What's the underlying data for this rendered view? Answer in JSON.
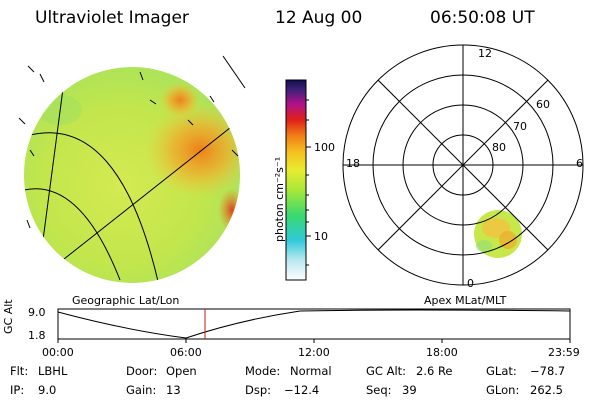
{
  "header": {
    "title": "Ultraviolet Imager",
    "date": "12 Aug 00",
    "time": "06:50:08 UT"
  },
  "colorbar": {
    "unit_label": "photon cm⁻²s⁻¹",
    "tick_100": "100",
    "tick_10": "10"
  },
  "polar_plot": {
    "mlt_labels": [
      "12",
      "18",
      "6",
      "0"
    ],
    "lat_labels": [
      "60",
      "70",
      "80"
    ]
  },
  "panel_captions": {
    "left": "Geographic Lat/Lon",
    "right": "Apex MLat/MLT"
  },
  "altitude_plot": {
    "axis_label": "GC Alt",
    "y_ticks": [
      "9.0",
      "1.8"
    ],
    "x_ticks": [
      "00:00",
      "06:00",
      "12:00",
      "18:00",
      "23:59"
    ],
    "current_time_marker": "06:50"
  },
  "info": {
    "row1": [
      {
        "label": "Flt:",
        "value": "LBHL"
      },
      {
        "label": "Door:",
        "value": "Open"
      },
      {
        "label": "Mode:",
        "value": "Normal"
      },
      {
        "label": "GC Alt:",
        "value": "2.6 Re"
      },
      {
        "label": "GLat:",
        "value": "−78.7"
      }
    ],
    "row2": [
      {
        "label": "IP:",
        "value": "9.0"
      },
      {
        "label": "Gain:",
        "value": "13"
      },
      {
        "label": "Dsp:",
        "value": "−12.4"
      },
      {
        "label": "Seq:",
        "value": "39"
      },
      {
        "label": "GLon:",
        "value": "262.5"
      }
    ]
  },
  "colors": {
    "image_base": "#c6e84a",
    "image_bright": "#f08a1e",
    "marker_line": "#c01818"
  }
}
